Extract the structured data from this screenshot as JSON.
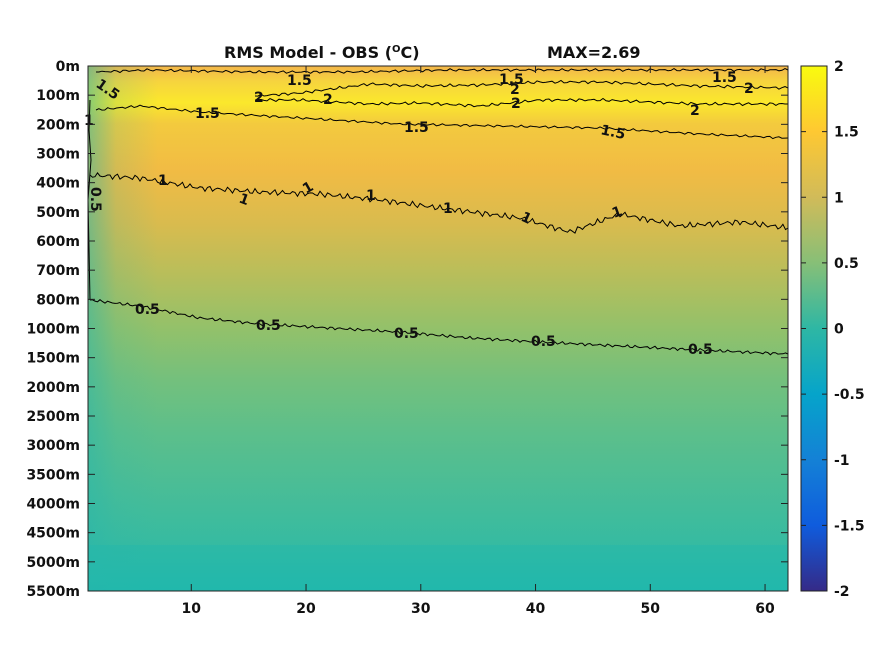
{
  "chart_data": {
    "type": "heatmap",
    "title": "RMS Model - OBS (°C)",
    "title_main": "RMS Model - OBS (",
    "title_sup": "O",
    "title_unit": "C)",
    "max_label": "MAX=2.69",
    "x_ticks": [
      10,
      20,
      30,
      40,
      50,
      60
    ],
    "x_range": [
      1,
      62
    ],
    "y_tick_labels": [
      "0m",
      "100m",
      "200m",
      "300m",
      "400m",
      "500m",
      "600m",
      "700m",
      "800m",
      "1000m",
      "1500m",
      "2000m",
      "2500m",
      "3000m",
      "3500m",
      "4000m",
      "4500m",
      "5000m",
      "5500m"
    ],
    "colorbar": {
      "min": -2,
      "max": 2,
      "tick_labels": [
        "2",
        "1.5",
        "1",
        "0.5",
        "0",
        "-0.5",
        "-1",
        "-1.5",
        "-2"
      ],
      "colormap": "parula",
      "colors": [
        "#352a87",
        "#0f5cdd",
        "#1481d6",
        "#06a4ca",
        "#2eb7a4",
        "#87bf77",
        "#d1bb59",
        "#fec832",
        "#f9fb0e"
      ]
    },
    "depth_profile_rms": [
      {
        "depth": "0m",
        "value": 1.4
      },
      {
        "depth": "100m",
        "value": 2.0
      },
      {
        "depth": "200m",
        "value": 1.6
      },
      {
        "depth": "300m",
        "value": 1.35
      },
      {
        "depth": "400m",
        "value": 1.1
      },
      {
        "depth": "500m",
        "value": 1.0
      },
      {
        "depth": "600m",
        "value": 0.92
      },
      {
        "depth": "700m",
        "value": 0.82
      },
      {
        "depth": "800m",
        "value": 0.72
      },
      {
        "depth": "1000m",
        "value": 0.55
      },
      {
        "depth": "1500m",
        "value": 0.43
      },
      {
        "depth": "2000m",
        "value": 0.38
      },
      {
        "depth": "2500m",
        "value": 0.33
      },
      {
        "depth": "3000m",
        "value": 0.3
      },
      {
        "depth": "3500m",
        "value": 0.27
      },
      {
        "depth": "4000m",
        "value": 0.24
      },
      {
        "depth": "4500m",
        "value": 0.21
      },
      {
        "depth": "5000m",
        "value": 0.18
      },
      {
        "depth": "5500m",
        "value": 0.14
      }
    ],
    "contours": [
      {
        "level": 2,
        "labels": [
          "2",
          "2",
          "2",
          "2",
          "2",
          "2"
        ]
      },
      {
        "level": 1.5,
        "labels": [
          "1.5",
          "1.5",
          "1.5",
          "1.5",
          "1.5",
          "1.5",
          "1.5"
        ]
      },
      {
        "level": 1,
        "labels": [
          "1",
          "1",
          "1",
          "1",
          "1",
          "1",
          "1",
          "1"
        ]
      },
      {
        "level": 0.5,
        "labels": [
          "0.5",
          "0.5",
          "0.5",
          "0.5",
          "0.5",
          "0.5"
        ]
      }
    ]
  }
}
